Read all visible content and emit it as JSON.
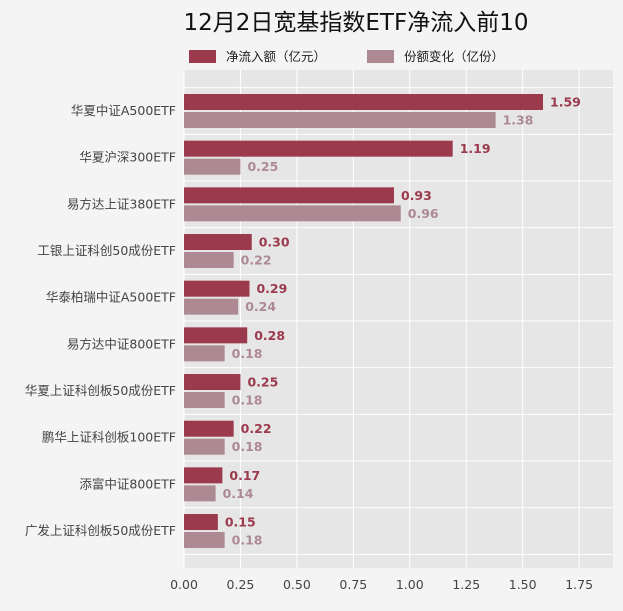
{
  "chart_data": {
    "type": "bar",
    "orientation": "horizontal",
    "title": "12月2日宽基指数ETF净流入前10",
    "categories": [
      "华夏中证A500ETF",
      "华夏沪深300ETF",
      "易方达上证380ETF",
      "工银上证科创50成份ETF",
      "华泰柏瑞中证A500ETF",
      "易方达中证800ETF",
      "华夏上证科创板50成份ETF",
      "鹏华上证科创板100ETF",
      "添富中证800ETF",
      "广发上证科创板50成份ETF"
    ],
    "series": [
      {
        "name": "净流入额（亿元）",
        "color": "#9b3a4d",
        "values": [
          1.59,
          1.19,
          0.93,
          0.3,
          0.29,
          0.28,
          0.25,
          0.22,
          0.17,
          0.15
        ],
        "labels": [
          "1.59",
          "1.19",
          "0.93",
          "0.30",
          "0.29",
          "0.28",
          "0.25",
          "0.22",
          "0.17",
          "0.15"
        ]
      },
      {
        "name": "份额变化（亿份）",
        "color": "#ad8a93",
        "values": [
          1.38,
          0.25,
          0.96,
          0.22,
          0.24,
          0.18,
          0.18,
          0.18,
          0.14,
          0.18
        ],
        "labels": [
          "1.38",
          "0.25",
          "0.96",
          "0.22",
          "0.24",
          "0.18",
          "0.18",
          "0.18",
          "0.14",
          "0.18"
        ]
      }
    ],
    "xlim": [
      0,
      1.9
    ],
    "xticks": [
      0.0,
      0.25,
      0.5,
      0.75,
      1.0,
      1.25,
      1.5,
      1.75
    ],
    "xtick_labels": [
      "0.00",
      "0.25",
      "0.50",
      "0.75",
      "1.00",
      "1.25",
      "1.50",
      "1.75"
    ],
    "grid": true,
    "legend_position": "top"
  }
}
